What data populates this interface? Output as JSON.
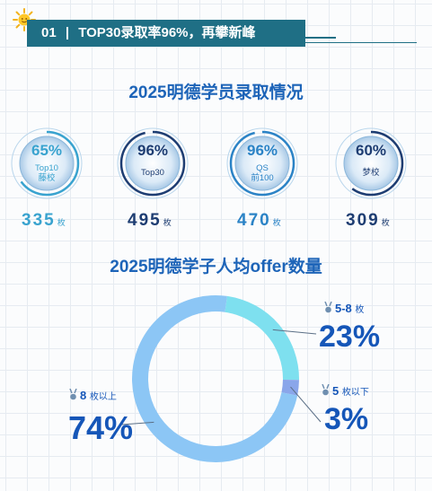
{
  "header": {
    "number": "01",
    "separator": "|",
    "text": "TOP30录取率96%，再攀新峰"
  },
  "admission": {
    "title": "2025明德学员录取情况",
    "circles": [
      {
        "percent": "65%",
        "caption": [
          "Top10",
          "藤校"
        ],
        "count": "335",
        "unit": "枚",
        "color": "#39a3cf"
      },
      {
        "percent": "96%",
        "caption": [
          "Top30"
        ],
        "count": "495",
        "unit": "枚",
        "color": "#1e3d72"
      },
      {
        "percent": "96%",
        "caption": [
          "QS",
          "前100"
        ],
        "count": "470",
        "unit": "枚",
        "color": "#2b83c6"
      },
      {
        "percent": "60%",
        "caption": [
          "梦校"
        ],
        "count": "309",
        "unit": "枚",
        "color": "#1e3d72"
      }
    ]
  },
  "offers": {
    "title": "2025明德学子人均offer数量",
    "segments": [
      {
        "label": "5-8",
        "unit": "枚",
        "percent": "23%"
      },
      {
        "label": "5",
        "unit": "枚以下",
        "percent": "3%"
      },
      {
        "label": "8",
        "unit": "枚以上",
        "percent": "74%"
      }
    ]
  },
  "chart_data": {
    "type": "pie",
    "title": "2025明德学子人均offer数量",
    "categories": [
      "5-8 枚",
      "5 枚以下",
      "8 枚以上"
    ],
    "values": [
      23,
      3,
      74
    ],
    "colors": [
      "#7ee0ef",
      "#8aa6ea",
      "#8cc6f5"
    ]
  }
}
